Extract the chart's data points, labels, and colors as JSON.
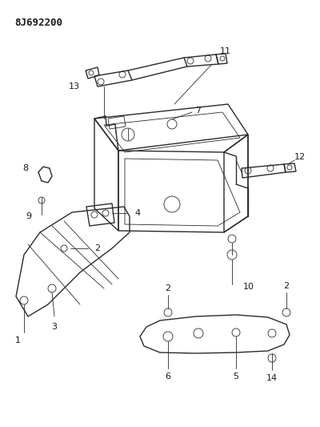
{
  "title_code": "8J692200",
  "bg_color": "#ffffff",
  "line_color": "#2a2a2a",
  "label_color": "#1a1a1a",
  "title_fontsize": 9,
  "label_fontsize": 8,
  "fig_width": 4.0,
  "fig_height": 5.33,
  "dpi": 100
}
